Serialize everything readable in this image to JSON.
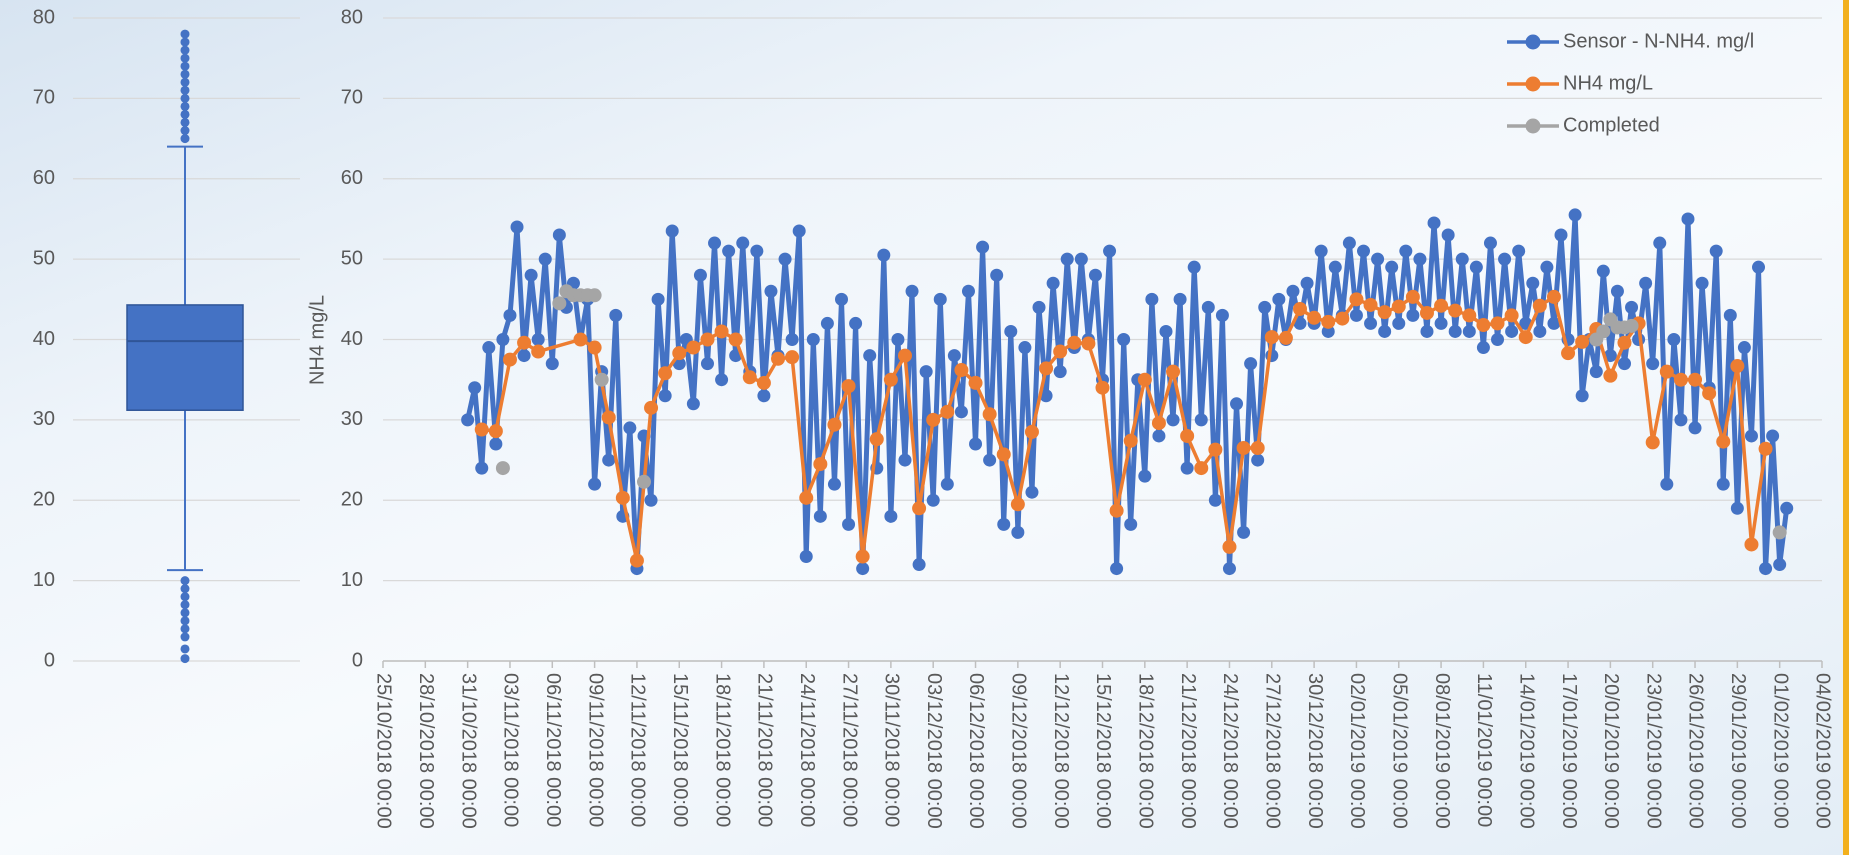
{
  "chart_data": [
    {
      "type": "box",
      "color": "#4472c4",
      "ylim": [
        0,
        80
      ],
      "yticks": [
        0,
        10,
        20,
        30,
        40,
        50,
        60,
        70,
        80
      ],
      "q1": 31.2,
      "median": 39.8,
      "q3": 44.3,
      "whisker_low": 11.3,
      "whisker_high": 64,
      "outliers": [
        0.3,
        1.5,
        3,
        4,
        5,
        6,
        7,
        8,
        9,
        10,
        65,
        66,
        67,
        68,
        69,
        70,
        71,
        72,
        73,
        74,
        75,
        76,
        77,
        78
      ]
    },
    {
      "type": "line",
      "ylabel": "NH4 mg/L",
      "grid": true,
      "legend": "upper right",
      "ylim": [
        0,
        80
      ],
      "yticks": [
        0,
        10,
        20,
        30,
        40,
        50,
        60,
        70,
        80
      ],
      "xlim": [
        "25/10/2018 00:00",
        "04/02/2019 00:00"
      ],
      "xticks": [
        "25/10/2018 00:00",
        "28/10/2018 00:00",
        "31/10/2018 00:00",
        "03/11/2018 00:00",
        "06/11/2018 00:00",
        "09/11/2018 00:00",
        "12/11/2018 00:00",
        "15/11/2018 00:00",
        "18/11/2018 00:00",
        "21/11/2018 00:00",
        "24/11/2018 00:00",
        "27/11/2018 00:00",
        "30/11/2018 00:00",
        "03/12/2018 00:00",
        "06/12/2018 00:00",
        "09/12/2018 00:00",
        "12/12/2018 00:00",
        "15/12/2018 00:00",
        "18/12/2018 00:00",
        "21/12/2018 00:00",
        "24/12/2018 00:00",
        "27/12/2018 00:00",
        "30/12/2018 00:00",
        "02/01/2019 00:00",
        "05/01/2019 00:00",
        "08/01/2019 00:00",
        "11/01/2019 00:00",
        "14/01/2019 00:00",
        "17/01/2019 00:00",
        "20/01/2019 00:00",
        "23/01/2019 00:00",
        "26/01/2019 00:00",
        "29/01/2019 00:00",
        "01/02/2019 00:00",
        "04/02/2019 00:00"
      ],
      "series": [
        {
          "name": "Sensor - N-NH4. mg/l",
          "color": "#4472c4",
          "style": "line",
          "x": [
            "31/10/2018 00:00",
            "31/10/2018 12:00",
            "01/11/2018 00:00",
            "01/11/2018 12:00",
            "02/11/2018 00:00",
            "02/11/2018 12:00",
            "03/11/2018 00:00",
            "03/11/2018 12:00",
            "04/11/2018 00:00",
            "04/11/2018 12:00",
            "05/11/2018 00:00",
            "05/11/2018 12:00",
            "06/11/2018 00:00",
            "06/11/2018 12:00",
            "07/11/2018 00:00",
            "07/11/2018 12:00",
            "08/11/2018 00:00",
            "08/11/2018 12:00",
            "09/11/2018 00:00",
            "09/11/2018 12:00",
            "10/11/2018 00:00",
            "10/11/2018 12:00",
            "11/11/2018 00:00",
            "11/11/2018 12:00",
            "12/11/2018 00:00",
            "12/11/2018 12:00",
            "13/11/2018 00:00",
            "13/11/2018 12:00",
            "14/11/2018 00:00",
            "14/11/2018 12:00",
            "15/11/2018 00:00",
            "15/11/2018 12:00",
            "16/11/2018 00:00",
            "16/11/2018 12:00",
            "17/11/2018 00:00",
            "17/11/2018 12:00",
            "18/11/2018 00:00",
            "18/11/2018 12:00",
            "19/11/2018 00:00",
            "19/11/2018 12:00",
            "20/11/2018 00:00",
            "20/11/2018 12:00",
            "21/11/2018 00:00",
            "21/11/2018 12:00",
            "22/11/2018 00:00",
            "22/11/2018 12:00",
            "23/11/2018 00:00",
            "23/11/2018 12:00",
            "24/11/2018 00:00",
            "24/11/2018 12:00",
            "25/11/2018 00:00",
            "25/11/2018 12:00",
            "26/11/2018 00:00",
            "26/11/2018 12:00",
            "27/11/2018 00:00",
            "27/11/2018 12:00",
            "28/11/2018 00:00",
            "28/11/2018 12:00",
            "29/11/2018 00:00",
            "29/11/2018 12:00",
            "30/11/2018 00:00",
            "30/11/2018 12:00",
            "01/12/2018 00:00",
            "01/12/2018 12:00",
            "02/12/2018 00:00",
            "02/12/2018 12:00",
            "03/12/2018 00:00",
            "03/12/2018 12:00",
            "04/12/2018 00:00",
            "04/12/2018 12:00",
            "05/12/2018 00:00",
            "05/12/2018 12:00",
            "06/12/2018 00:00",
            "06/12/2018 12:00",
            "07/12/2018 00:00",
            "07/12/2018 12:00",
            "08/12/2018 00:00",
            "08/12/2018 12:00",
            "09/12/2018 00:00",
            "09/12/2018 12:00",
            "10/12/2018 00:00",
            "10/12/2018 12:00",
            "11/12/2018 00:00",
            "11/12/2018 12:00",
            "12/12/2018 00:00",
            "12/12/2018 12:00",
            "13/12/2018 00:00",
            "13/12/2018 12:00",
            "14/12/2018 00:00",
            "14/12/2018 12:00",
            "15/12/2018 00:00",
            "15/12/2018 12:00",
            "16/12/2018 00:00",
            "16/12/2018 12:00",
            "17/12/2018 00:00",
            "17/12/2018 12:00",
            "18/12/2018 00:00",
            "18/12/2018 12:00",
            "19/12/2018 00:00",
            "19/12/2018 12:00",
            "20/12/2018 00:00",
            "20/12/2018 12:00",
            "21/12/2018 00:00",
            "21/12/2018 12:00",
            "22/12/2018 00:00",
            "22/12/2018 12:00",
            "23/12/2018 00:00",
            "23/12/2018 12:00",
            "24/12/2018 00:00",
            "24/12/2018 12:00",
            "25/12/2018 00:00",
            "25/12/2018 12:00",
            "26/12/2018 00:00",
            "26/12/2018 12:00",
            "27/12/2018 00:00",
            "27/12/2018 12:00",
            "28/12/2018 00:00",
            "28/12/2018 12:00",
            "29/12/2018 00:00",
            "29/12/2018 12:00",
            "30/12/2018 00:00",
            "30/12/2018 12:00",
            "31/12/2018 00:00",
            "31/12/2018 12:00",
            "01/01/2019 00:00",
            "01/01/2019 12:00",
            "02/01/2019 00:00",
            "02/01/2019 12:00",
            "03/01/2019 00:00",
            "03/01/2019 12:00",
            "04/01/2019 00:00",
            "04/01/2019 12:00",
            "05/01/2019 00:00",
            "05/01/2019 12:00",
            "06/01/2019 00:00",
            "06/01/2019 12:00",
            "07/01/2019 00:00",
            "07/01/2019 12:00",
            "08/01/2019 00:00",
            "08/01/2019 12:00",
            "09/01/2019 00:00",
            "09/01/2019 12:00",
            "10/01/2019 00:00",
            "10/01/2019 12:00",
            "11/01/2019 00:00",
            "11/01/2019 12:00",
            "12/01/2019 00:00",
            "12/01/2019 12:00",
            "13/01/2019 00:00",
            "13/01/2019 12:00",
            "14/01/2019 00:00",
            "14/01/2019 12:00",
            "15/01/2019 00:00",
            "15/01/2019 12:00",
            "16/01/2019 00:00",
            "16/01/2019 12:00",
            "17/01/2019 00:00",
            "17/01/2019 12:00",
            "18/01/2019 00:00",
            "18/01/2019 12:00",
            "19/01/2019 00:00",
            "19/01/2019 12:00",
            "20/01/2019 00:00",
            "20/01/2019 12:00",
            "21/01/2019 00:00",
            "21/01/2019 12:00",
            "22/01/2019 00:00",
            "22/01/2019 12:00",
            "23/01/2019 00:00",
            "23/01/2019 12:00",
            "24/01/2019 00:00",
            "24/01/2019 12:00",
            "25/01/2019 00:00",
            "25/01/2019 12:00",
            "26/01/2019 00:00",
            "26/01/2019 12:00",
            "27/01/2019 00:00",
            "27/01/2019 12:00",
            "28/01/2019 00:00",
            "28/01/2019 12:00",
            "29/01/2019 00:00",
            "29/01/2019 12:00",
            "30/01/2019 00:00",
            "30/01/2019 12:00",
            "31/01/2019 00:00",
            "31/01/2019 12:00",
            "01/02/2019 00:00",
            "01/02/2019 12:00"
          ],
          "values": [
            30,
            34,
            24,
            39,
            27,
            40,
            43,
            54,
            38,
            48,
            40,
            50,
            37,
            53,
            44,
            47,
            40,
            45,
            22,
            36,
            25,
            43,
            18,
            29,
            11.5,
            28,
            20,
            45,
            33,
            53.5,
            37,
            40,
            32,
            48,
            37,
            52,
            35,
            51,
            38,
            52,
            36,
            51,
            33,
            46,
            38,
            50,
            40,
            53.5,
            13,
            40,
            18,
            42,
            22,
            45,
            17,
            42,
            11.5,
            38,
            24,
            50.5,
            18,
            40,
            25,
            46,
            12,
            36,
            20,
            45,
            22,
            38,
            31,
            46,
            27,
            51.5,
            25,
            48,
            17,
            41,
            16,
            39,
            21,
            44,
            33,
            47,
            36,
            50,
            39,
            50,
            40,
            48,
            35,
            51,
            11.5,
            40,
            17,
            35,
            23,
            45,
            28,
            41,
            30,
            45,
            24,
            49,
            30,
            44,
            20,
            43,
            11.5,
            32,
            16,
            37,
            25,
            44,
            38,
            45,
            40,
            46,
            42,
            47,
            42,
            51,
            41,
            49,
            43,
            52,
            43,
            51,
            42,
            50,
            41,
            49,
            42,
            51,
            43,
            50,
            41,
            54.5,
            42,
            53,
            41,
            50,
            41,
            49,
            39,
            52,
            40,
            50,
            41,
            51,
            42,
            47,
            41,
            49,
            42,
            53,
            40,
            55.5,
            33,
            40,
            36,
            48.5,
            38,
            46,
            37,
            44,
            40,
            47,
            37,
            52,
            22,
            40,
            30,
            55,
            29,
            47,
            34,
            51,
            22,
            43,
            19,
            39,
            28,
            49,
            11.5,
            28,
            12,
            19
          ]
        },
        {
          "name": "NH4 mg/L",
          "color": "#ed7d31",
          "style": "line",
          "x": [
            "01/11/2018 00:00",
            "02/11/2018 00:00",
            "03/11/2018 00:00",
            "04/11/2018 00:00",
            "05/11/2018 00:00",
            "08/11/2018 00:00",
            "09/11/2018 00:00",
            "10/11/2018 00:00",
            "11/11/2018 00:00",
            "12/11/2018 00:00",
            "13/11/2018 00:00",
            "14/11/2018 00:00",
            "15/11/2018 00:00",
            "16/11/2018 00:00",
            "17/11/2018 00:00",
            "18/11/2018 00:00",
            "19/11/2018 00:00",
            "20/11/2018 00:00",
            "21/11/2018 00:00",
            "22/11/2018 00:00",
            "23/11/2018 00:00",
            "24/11/2018 00:00",
            "25/11/2018 00:00",
            "26/11/2018 00:00",
            "27/11/2018 00:00",
            "28/11/2018 00:00",
            "29/11/2018 00:00",
            "30/11/2018 00:00",
            "01/12/2018 00:00",
            "02/12/2018 00:00",
            "03/12/2018 00:00",
            "04/12/2018 00:00",
            "05/12/2018 00:00",
            "06/12/2018 00:00",
            "07/12/2018 00:00",
            "08/12/2018 00:00",
            "09/12/2018 00:00",
            "10/12/2018 00:00",
            "11/12/2018 00:00",
            "12/12/2018 00:00",
            "13/12/2018 00:00",
            "14/12/2018 00:00",
            "15/12/2018 00:00",
            "16/12/2018 00:00",
            "17/12/2018 00:00",
            "18/12/2018 00:00",
            "19/12/2018 00:00",
            "20/12/2018 00:00",
            "21/12/2018 00:00",
            "22/12/2018 00:00",
            "23/12/2018 00:00",
            "24/12/2018 00:00",
            "25/12/2018 00:00",
            "26/12/2018 00:00",
            "27/12/2018 00:00",
            "28/12/2018 00:00",
            "29/12/2018 00:00",
            "30/12/2018 00:00",
            "31/12/2018 00:00",
            "01/01/2019 00:00",
            "02/01/2019 00:00",
            "03/01/2019 00:00",
            "04/01/2019 00:00",
            "05/01/2019 00:00",
            "06/01/2019 00:00",
            "07/01/2019 00:00",
            "08/01/2019 00:00",
            "09/01/2019 00:00",
            "10/01/2019 00:00",
            "11/01/2019 00:00",
            "12/01/2019 00:00",
            "13/01/2019 00:00",
            "14/01/2019 00:00",
            "15/01/2019 00:00",
            "16/01/2019 00:00",
            "17/01/2019 00:00",
            "18/01/2019 00:00",
            "19/01/2019 00:00",
            "20/01/2019 00:00",
            "21/01/2019 00:00",
            "22/01/2019 00:00",
            "23/01/2019 00:00",
            "24/01/2019 00:00",
            "25/01/2019 00:00",
            "26/01/2019 00:00",
            "27/01/2019 00:00",
            "28/01/2019 00:00",
            "29/01/2019 00:00",
            "30/01/2019 00:00",
            "31/01/2019 00:00"
          ],
          "values": [
            28.8,
            28.6,
            37.5,
            39.6,
            38.5,
            40,
            39,
            30.3,
            20.3,
            12.5,
            31.5,
            35.8,
            38.3,
            39,
            40,
            41,
            40,
            35.3,
            34.6,
            37.6,
            37.8,
            20.3,
            24.5,
            29.4,
            34.2,
            13,
            27.6,
            35,
            38,
            19,
            30,
            31,
            36.2,
            34.6,
            30.7,
            25.7,
            19.5,
            28.5,
            36.4,
            38.5,
            39.6,
            39.5,
            34,
            18.7,
            27.4,
            35,
            29.6,
            36,
            28,
            24,
            26.3,
            14.2,
            26.5,
            26.5,
            40.3,
            40.2,
            43.8,
            42.7,
            42.2,
            42.6,
            45,
            44.3,
            43.4,
            44.1,
            45.3,
            43.3,
            44.2,
            43.6,
            43,
            41.8,
            42,
            43,
            40.3,
            44.2,
            45.3,
            38.3,
            39.7,
            41.3,
            35.5,
            39.6,
            42,
            27.2,
            36,
            35,
            35,
            33.3,
            27.3,
            36.7,
            14.5,
            26.4
          ]
        },
        {
          "name": "Completed",
          "color": "#a5a5a5",
          "style": "markers",
          "x": [
            "02/11/2018 12:00",
            "06/11/2018 12:00",
            "07/11/2018 00:00",
            "07/11/2018 12:00",
            "08/11/2018 00:00",
            "08/11/2018 12:00",
            "09/11/2018 00:00",
            "09/11/2018 12:00",
            "12/11/2018 12:00",
            "19/01/2019 00:00",
            "19/01/2019 12:00",
            "20/01/2019 00:00",
            "20/01/2019 12:00",
            "21/01/2019 00:00",
            "21/01/2019 12:00",
            "01/02/2019 00:00"
          ],
          "values": [
            24,
            44.5,
            46,
            45.5,
            45.5,
            45.5,
            45.5,
            35,
            22.3,
            40,
            41,
            42.5,
            41.5,
            41.5,
            41.7,
            16
          ]
        }
      ]
    }
  ]
}
